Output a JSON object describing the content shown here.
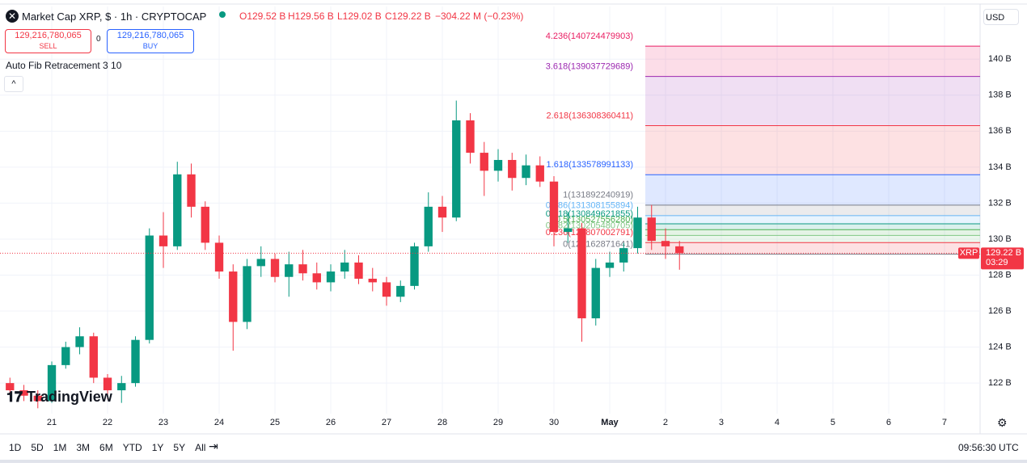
{
  "header": {
    "symbol_title": "Market Cap XRP, $ · 1h · CRYPTOCAP",
    "open": "O129.52 B",
    "high": "H129.56 B",
    "low": "L129.02 B",
    "close": "C129.22 B",
    "change": "−304.22 M (−0.23%)"
  },
  "trade": {
    "sell_price": "129,216,780,065",
    "sell": "SELL",
    "spread": "0",
    "buy_price": "129,216,780,065",
    "buy": "BUY"
  },
  "indicator": "Auto Fib Retracement 3 10",
  "currency": "USD",
  "logo": "TradingView",
  "ranges": [
    "1D",
    "5D",
    "1M",
    "3M",
    "6M",
    "YTD",
    "1Y",
    "5Y",
    "All"
  ],
  "clock": "09:56:30 UTC",
  "chart_data": {
    "type": "candlestick",
    "x": [
      20.25,
      20.5,
      20.75,
      21,
      21.25,
      21.5,
      21.75,
      22,
      22.25,
      22.5,
      22.75,
      23,
      23.25,
      23.5,
      23.75,
      24,
      24.25,
      24.5,
      24.75,
      25,
      25.25,
      25.5,
      25.75,
      26,
      26.25,
      26.5,
      26.75,
      27,
      27.25,
      27.5,
      27.75,
      28,
      28.25,
      28.5,
      28.75,
      29,
      29.25,
      29.5,
      29.75,
      30,
      30.25,
      30.5,
      30.75,
      31,
      31.25,
      31.5,
      31.75,
      32,
      32.25
    ],
    "open": [
      122.0,
      121.6,
      121.3,
      121.0,
      123.0,
      124.0,
      124.6,
      122.3,
      121.6,
      122.0,
      124.4,
      130.2,
      129.6,
      133.6,
      131.8,
      129.8,
      128.2,
      125.4,
      128.5,
      128.9,
      127.9,
      128.6,
      128.1,
      127.6,
      128.2,
      128.7,
      127.8,
      127.6,
      126.8,
      127.4,
      129.6,
      131.8,
      131.2,
      136.6,
      134.8,
      133.8,
      134.4,
      133.4,
      134.1,
      133.2,
      130.4,
      130.6,
      125.6,
      128.4,
      128.7,
      129.5,
      131.2,
      129.9,
      129.6
    ],
    "high": [
      122.3,
      121.9,
      121.6,
      123.2,
      124.3,
      125.1,
      124.8,
      122.5,
      122.4,
      124.6,
      130.6,
      131.5,
      134.3,
      134.2,
      132.1,
      130.2,
      128.6,
      128.9,
      129.6,
      129.2,
      129.3,
      129.4,
      128.7,
      128.6,
      129.4,
      129.1,
      128.4,
      127.9,
      127.7,
      129.8,
      132.6,
      132.4,
      137.7,
      137.0,
      135.4,
      135.0,
      134.8,
      134.7,
      134.6,
      133.5,
      131.5,
      130.9,
      128.9,
      129.3,
      129.8,
      131.8,
      131.9,
      130.6,
      129.9
    ],
    "low": [
      121.4,
      121.0,
      120.6,
      120.9,
      122.8,
      123.6,
      122.0,
      121.1,
      120.9,
      121.8,
      124.2,
      128.4,
      129.4,
      131.2,
      129.4,
      127.8,
      123.8,
      125.0,
      127.9,
      127.6,
      126.8,
      127.7,
      127.2,
      127.1,
      127.8,
      127.5,
      127.1,
      126.3,
      126.5,
      127.2,
      129.3,
      130.4,
      131.0,
      134.2,
      132.4,
      133.2,
      132.7,
      133.0,
      132.9,
      129.6,
      129.8,
      124.3,
      125.2,
      127.9,
      128.2,
      129.2,
      129.4,
      128.9,
      128.3
    ],
    "close": [
      121.6,
      121.3,
      121.0,
      123.0,
      124.0,
      124.6,
      122.3,
      121.6,
      122.0,
      124.4,
      130.2,
      129.6,
      133.6,
      131.8,
      129.8,
      128.2,
      125.4,
      128.5,
      128.9,
      127.9,
      128.6,
      128.1,
      127.6,
      128.2,
      128.7,
      127.8,
      127.6,
      126.8,
      127.4,
      129.6,
      131.8,
      131.2,
      136.6,
      134.8,
      133.8,
      134.4,
      133.4,
      134.1,
      133.2,
      130.4,
      130.6,
      125.6,
      128.4,
      128.7,
      129.5,
      131.2,
      129.9,
      129.6,
      129.22
    ],
    "up_color": "#089981",
    "down_color": "#f23645",
    "xlim": [
      20.072,
      37.638
    ],
    "xticks": [
      21,
      22,
      23,
      24,
      25,
      26,
      27,
      28,
      29,
      30,
      {
        "value": 31,
        "label": "May"
      },
      {
        "value": 32,
        "label": "2"
      },
      {
        "value": 33,
        "label": "3"
      },
      {
        "value": 34,
        "label": "4"
      },
      {
        "value": 35,
        "label": "5"
      },
      {
        "value": 36,
        "label": "6"
      },
      {
        "value": 37,
        "label": "7"
      }
    ],
    "ylim": [
      120.3,
      142.93
    ],
    "yticks": [
      {
        "value": 122,
        "label": "122 B"
      },
      {
        "value": 124,
        "label": "124 B"
      },
      {
        "value": 126,
        "label": "126 B"
      },
      {
        "value": 128,
        "label": "128 B"
      },
      {
        "value": 130,
        "label": "130 B"
      },
      {
        "value": 132,
        "label": "132 B"
      },
      {
        "value": 134,
        "label": "134 B"
      },
      {
        "value": 136,
        "label": "136 B"
      },
      {
        "value": 138,
        "label": "138 B"
      },
      {
        "value": 140,
        "label": "140 B"
      }
    ],
    "grid": true,
    "last_price": {
      "value": 129.22,
      "label": "129.22 B"
    },
    "symbol_tag": "XRP",
    "countdown": "03:29",
    "fib_levels": [
      {
        "value": 129.162871641,
        "label": "0(129162871641)",
        "color": "#787b86"
      },
      {
        "value": 129.807002791,
        "label": "0.236(129807002791)",
        "color": "#f23645"
      },
      {
        "value": 130.205480705,
        "label": "0.382(130205480705)",
        "color": "#81c784"
      },
      {
        "value": 130.52755628,
        "label": "0.5(130527556280)",
        "color": "#4caf50"
      },
      {
        "value": 130.849621855,
        "label": "0.618(130849621855)",
        "color": "#089981"
      },
      {
        "value": 131.308155894,
        "label": "0.786(131308155894)",
        "color": "#64b5f6"
      },
      {
        "value": 131.892240919,
        "label": "1(131892240919)",
        "color": "#787b86"
      },
      {
        "value": 133.578991133,
        "label": "1.618(133578991133)",
        "color": "#2962ff"
      },
      {
        "value": 136.308360411,
        "label": "2.618(136308360411)",
        "color": "#f23645"
      },
      {
        "value": 139.037729689,
        "label": "3.618(139037729689)",
        "color": "#9c27b0"
      },
      {
        "value": 140.724479903,
        "label": "4.236(140724479903)",
        "color": "#e91e63"
      }
    ]
  }
}
